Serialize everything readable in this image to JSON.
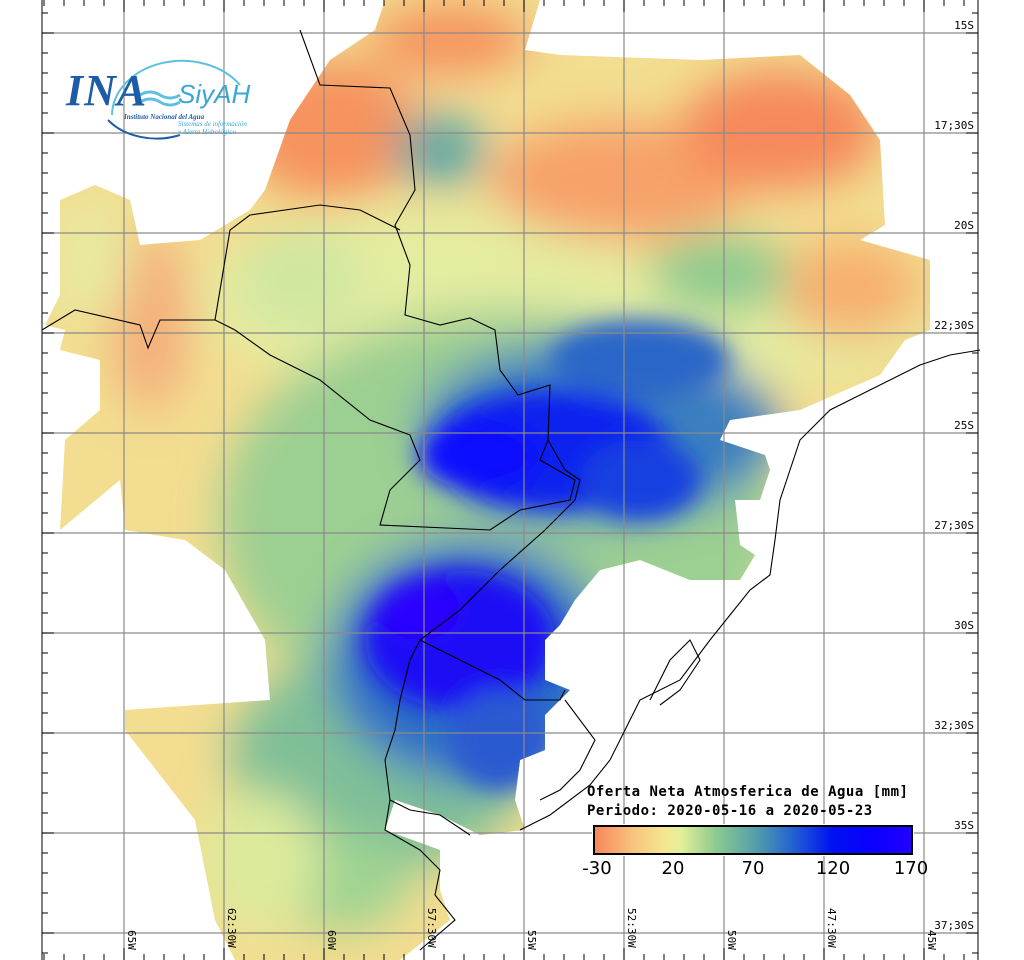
{
  "logo": {
    "acronym": "INA",
    "system": "SiyAH",
    "institute": "Instituto Nacional del Agua",
    "system_line1": "Sistemas de información",
    "system_line2": "y Alerta Hidrológico"
  },
  "legend": {
    "title": "Oferta Neta Atmosferica de Agua [mm]",
    "period": "Periodo: 2020-05-16 a 2020-05-23",
    "ticks": [
      "-30",
      "20",
      "70",
      "120",
      "170"
    ],
    "colors": [
      "#f7875a",
      "#f3e78f",
      "#8fcb90",
      "#57a2a8",
      "#2466d0",
      "#0010f2",
      "#2400ff"
    ]
  },
  "axes": {
    "lat_labels": [
      "15S",
      "17;30S",
      "20S",
      "22;30S",
      "25S",
      "27;30S",
      "30S",
      "32;30S",
      "35S",
      "37;30S"
    ],
    "lon_labels": [
      "65W",
      "62:30W",
      "60W",
      "57:30W",
      "55W",
      "52:30W",
      "50W",
      "47:30W",
      "45W"
    ]
  }
}
